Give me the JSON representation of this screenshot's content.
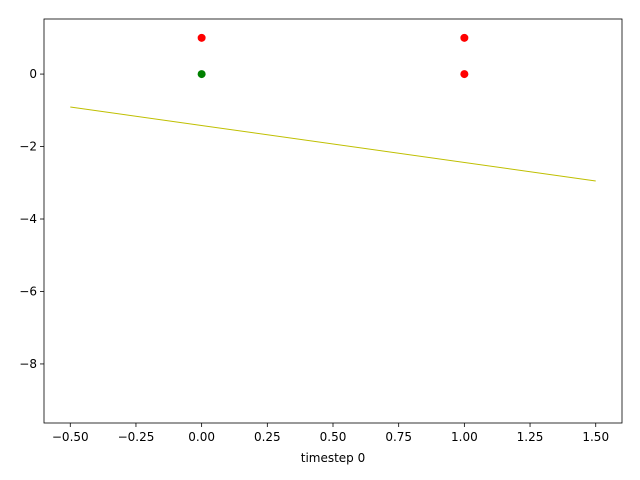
{
  "chart_data": {
    "type": "scatter",
    "xlabel": "timestep 0",
    "xlim": [
      -0.6,
      1.6
    ],
    "ylim": [
      -9.63,
      1.52
    ],
    "xticks": [
      {
        "value": -0.5,
        "label": "−0.50"
      },
      {
        "value": -0.25,
        "label": "−0.25"
      },
      {
        "value": 0,
        "label": "0.00"
      },
      {
        "value": 0.25,
        "label": "0.25"
      },
      {
        "value": 0.5,
        "label": "0.50"
      },
      {
        "value": 0.75,
        "label": "0.75"
      },
      {
        "value": 1,
        "label": "1.00"
      },
      {
        "value": 1.25,
        "label": "1.25"
      },
      {
        "value": 1.5,
        "label": "1.50"
      }
    ],
    "yticks": [
      {
        "value": -8,
        "label": "−8"
      },
      {
        "value": -6,
        "label": "−6"
      },
      {
        "value": -4,
        "label": "−4"
      },
      {
        "value": -2,
        "label": "−2"
      },
      0
    ],
    "series": [
      {
        "style": "line",
        "color": "#bfbf00",
        "x": [
          -0.5,
          1.5
        ],
        "values": [
          -0.91,
          -2.95
        ]
      },
      {
        "style": "marker",
        "color": "#ff0000",
        "x": [
          0,
          1,
          1
        ],
        "values": [
          1,
          1,
          0
        ]
      },
      {
        "style": "marker",
        "color": "#008000",
        "x": [
          0
        ],
        "values": [
          0
        ]
      }
    ]
  }
}
